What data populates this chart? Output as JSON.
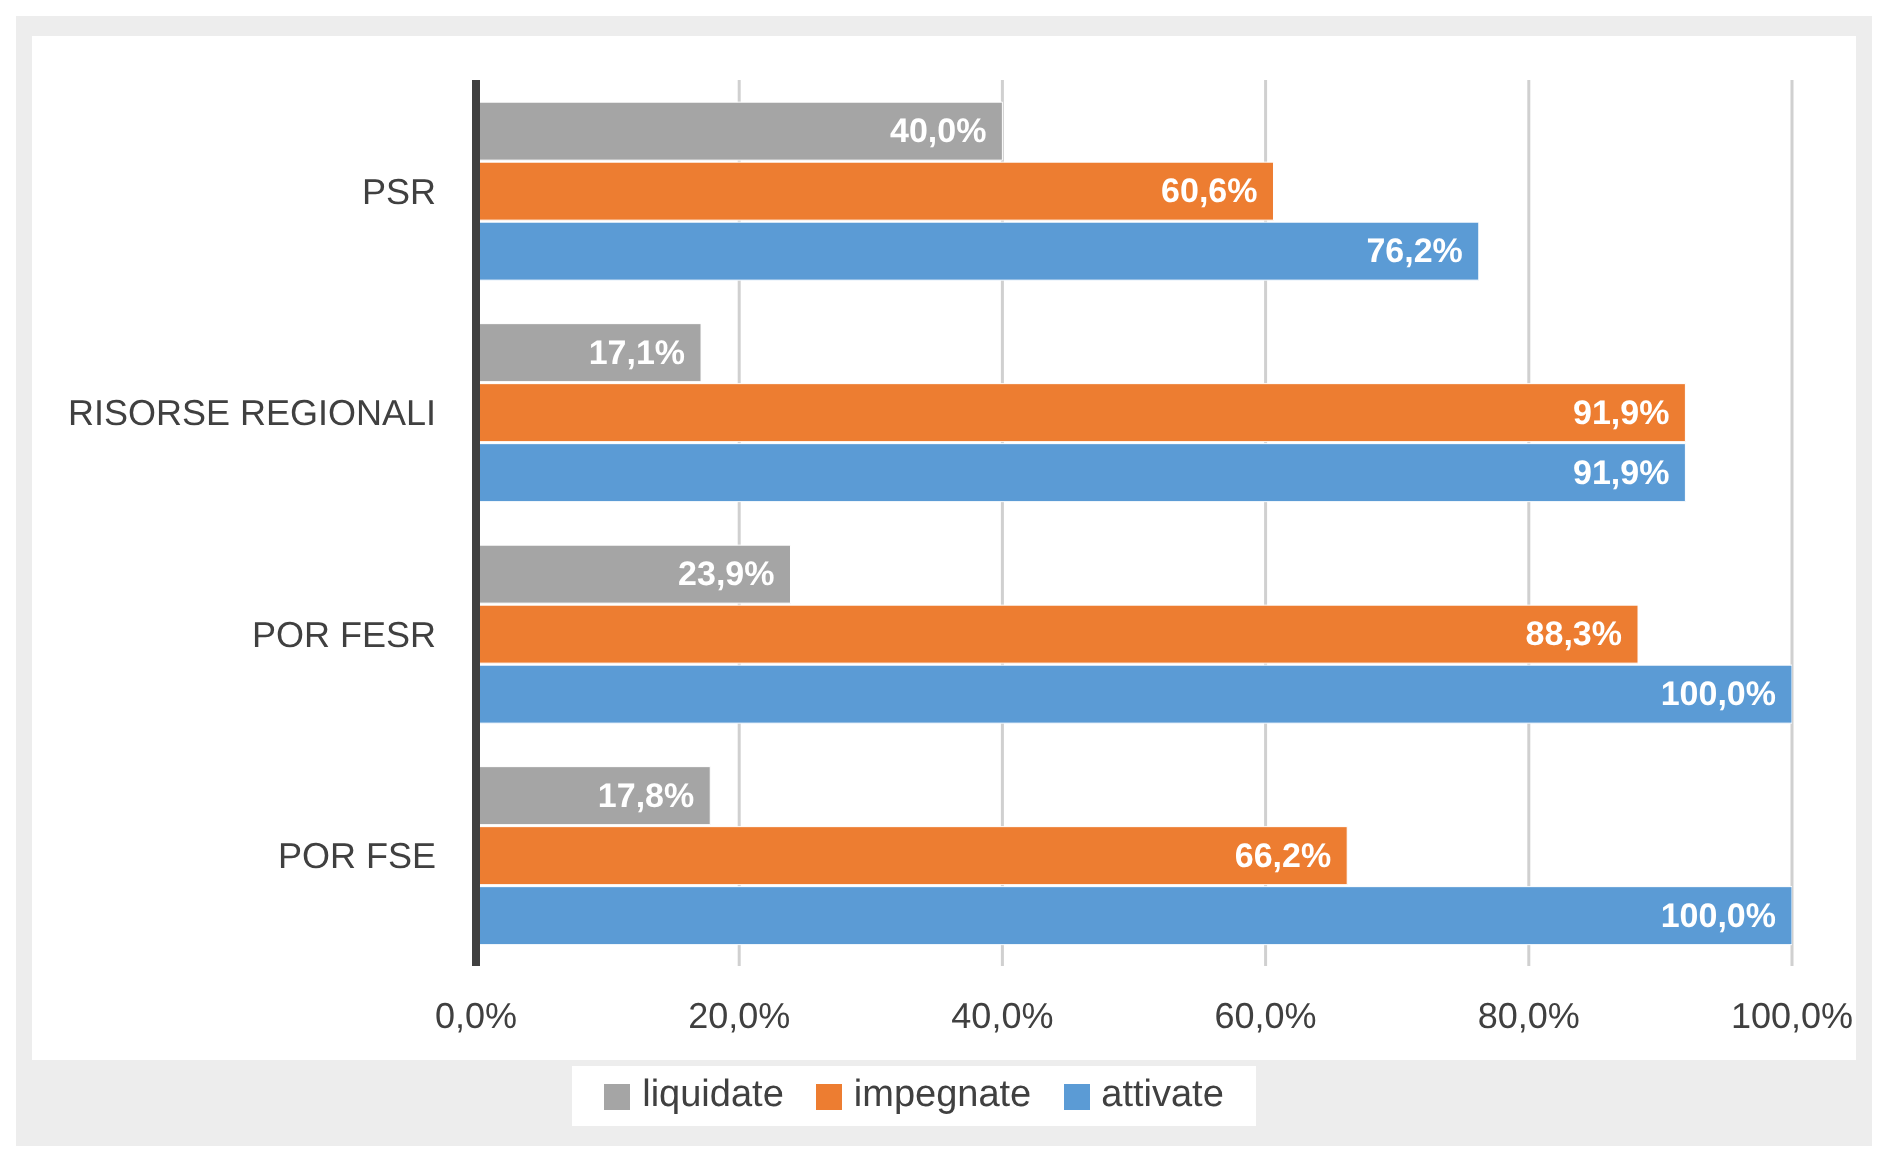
{
  "chart_data": {
    "type": "bar",
    "orientation": "horizontal",
    "categories": [
      "PSR",
      "RISORSE REGIONALI",
      "POR FESR",
      "POR FSE"
    ],
    "series": [
      {
        "name": "liquidate",
        "color": "#a5a5a5",
        "values": [
          40.0,
          17.1,
          23.9,
          17.8
        ],
        "value_labels": [
          "40,0%",
          "17,1%",
          "23,9%",
          "17,8%"
        ]
      },
      {
        "name": "impegnate",
        "color": "#ed7d31",
        "values": [
          60.6,
          91.9,
          88.3,
          66.2
        ],
        "value_labels": [
          "60,6%",
          "91,9%",
          "88,3%",
          "66,2%"
        ]
      },
      {
        "name": "attivate",
        "color": "#5b9bd5",
        "values": [
          76.2,
          91.9,
          100.0,
          100.0
        ],
        "value_labels": [
          "76,2%",
          "91,9%",
          "100,0%",
          "100,0%"
        ]
      }
    ],
    "xlim": [
      0,
      100
    ],
    "xticks": [
      {
        "value": 0,
        "label": "0,0%"
      },
      {
        "value": 20,
        "label": "20,0%"
      },
      {
        "value": 40,
        "label": "40,0%"
      },
      {
        "value": 60,
        "label": "60,0%"
      },
      {
        "value": 80,
        "label": "80,0%"
      },
      {
        "value": 100,
        "label": "100,0%"
      }
    ],
    "grid": "x",
    "legend": "bottom"
  }
}
